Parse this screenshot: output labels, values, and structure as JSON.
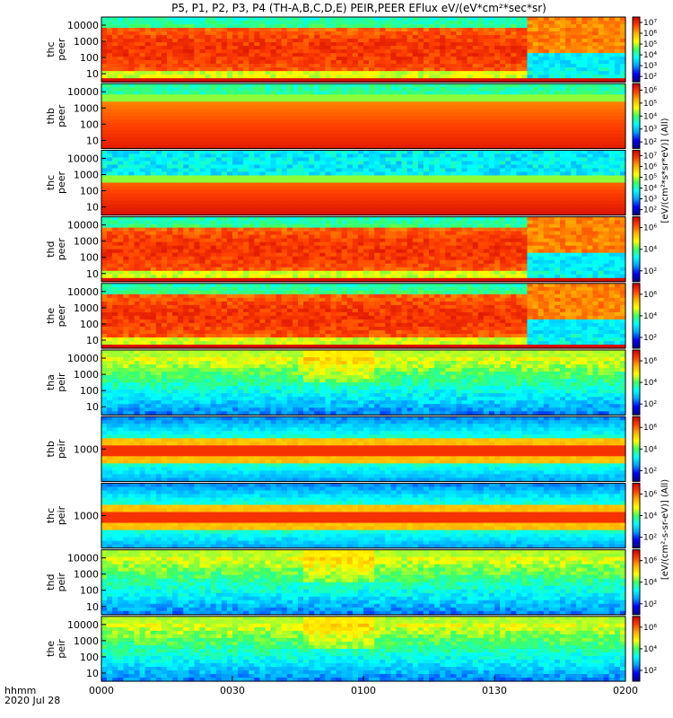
{
  "title": "P5, P1, P2, P3, P4 (TH-A,B,C,D,E) PEIR,PEER EFlux eV/(eV*cm²*sec*sr)",
  "x_axis": {
    "label": "hhmm",
    "date": "2020 Jul 28",
    "ticks": [
      "0000",
      "0030",
      "0100",
      "0130",
      "0200"
    ]
  },
  "colorbar_label_electrons": "[eV/(cm²*s*sr*eV)] (All)",
  "colorbar_label_ions": "[eV/(cm²-s-sr-eV)] (All)",
  "colormap": [
    "#00007f",
    "#0000ff",
    "#00a0ff",
    "#00ffff",
    "#40ff60",
    "#ffff00",
    "#ffb000",
    "#ff4000",
    "#cc0000"
  ],
  "chart_data": [
    {
      "type": "heatmap",
      "ylabel": [
        "thc",
        "peer"
      ],
      "yticks": [
        "10",
        "100",
        "1000",
        "10000"
      ],
      "cticks": [
        "10²",
        "10³",
        "10⁴",
        "10⁵",
        "10⁶",
        "10⁷"
      ],
      "x_range": [
        "0000",
        "0200"
      ],
      "log_y": true,
      "pattern": "plasmasheet_transition",
      "transition_time": "0137",
      "lowE_cutoff": true
    },
    {
      "type": "heatmap",
      "ylabel": [
        "thb",
        "peer"
      ],
      "yticks": [
        "10",
        "100",
        "1000",
        "10000"
      ],
      "cticks": [
        "10²",
        "10³",
        "10⁴",
        "10⁵",
        "10⁶"
      ],
      "x_range": [
        "0000",
        "0200"
      ],
      "log_y": true,
      "pattern": "uniform_bands"
    },
    {
      "type": "heatmap",
      "ylabel": [
        "thc",
        "peer"
      ],
      "yticks": [
        "10",
        "100",
        "1000",
        "10000"
      ],
      "cticks": [
        "10²",
        "10³",
        "10⁴",
        "10⁵",
        "10⁶",
        "10⁷"
      ],
      "x_range": [
        "0000",
        "0200"
      ],
      "log_y": true,
      "pattern": "uniform_cold"
    },
    {
      "type": "heatmap",
      "ylabel": [
        "thd",
        "peer"
      ],
      "yticks": [
        "10",
        "100",
        "1000",
        "10000"
      ],
      "cticks": [
        "10²",
        "10⁴",
        "10⁶"
      ],
      "x_range": [
        "0000",
        "0200"
      ],
      "log_y": true,
      "pattern": "plasmasheet_transition",
      "transition_time": "0137",
      "lowE_cutoff": true
    },
    {
      "type": "heatmap",
      "ylabel": [
        "the",
        "peer"
      ],
      "yticks": [
        "10",
        "100",
        "1000",
        "10000"
      ],
      "cticks": [
        "10²",
        "10⁴",
        "10⁶"
      ],
      "x_range": [
        "0000",
        "0200"
      ],
      "log_y": true,
      "pattern": "plasmasheet_transition",
      "transition_time": "0137",
      "lowE_cutoff": true
    },
    {
      "type": "heatmap",
      "ylabel": [
        "tha",
        "peir"
      ],
      "yticks": [
        "10",
        "100",
        "1000",
        "10000"
      ],
      "cticks": [
        "10²",
        "10⁴",
        "10⁶"
      ],
      "x_range": [
        "0000",
        "0200"
      ],
      "log_y": true,
      "pattern": "ion_broad"
    },
    {
      "type": "heatmap",
      "ylabel": [
        "thb",
        "peir"
      ],
      "yticks": [
        "1000"
      ],
      "cticks": [
        "10²",
        "10⁴",
        "10⁶"
      ],
      "x_range": [
        "0000",
        "0200"
      ],
      "log_y": true,
      "pattern": "ion_bands"
    },
    {
      "type": "heatmap",
      "ylabel": [
        "thc",
        "peir"
      ],
      "yticks": [
        "1000"
      ],
      "cticks": [
        "10²",
        "10⁴",
        "10⁶"
      ],
      "x_range": [
        "0000",
        "0200"
      ],
      "log_y": true,
      "pattern": "ion_bands"
    },
    {
      "type": "heatmap",
      "ylabel": [
        "thd",
        "peir"
      ],
      "yticks": [
        "10",
        "100",
        "1000",
        "10000"
      ],
      "cticks": [
        "10²",
        "10⁴",
        "10⁶"
      ],
      "x_range": [
        "0000",
        "0200"
      ],
      "log_y": true,
      "pattern": "ion_broad"
    },
    {
      "type": "heatmap",
      "ylabel": [
        "the",
        "peir"
      ],
      "yticks": [
        "10",
        "100",
        "1000",
        "10000"
      ],
      "cticks": [
        "10²",
        "10⁴",
        "10⁶"
      ],
      "x_range": [
        "0000",
        "0200"
      ],
      "log_y": true,
      "pattern": "ion_broad"
    }
  ]
}
